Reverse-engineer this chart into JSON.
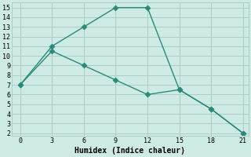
{
  "line1_x": [
    0,
    3,
    6,
    9,
    12,
    15,
    18,
    21
  ],
  "line1_y": [
    7,
    11,
    13,
    15,
    15,
    6.5,
    4.5,
    2
  ],
  "line2_x": [
    0,
    3,
    6,
    9,
    12,
    15,
    18,
    21
  ],
  "line2_y": [
    7,
    10.5,
    9,
    7.5,
    6,
    6.5,
    4.5,
    2
  ],
  "line_color": "#2a8a78",
  "bg_color": "#ceeae4",
  "grid_color": "#aacfc8",
  "xlabel": "Humidex (Indice chaleur)",
  "ymin": 2,
  "ymax": 15,
  "xmin": 0,
  "xmax": 21,
  "yticks": [
    2,
    3,
    4,
    5,
    6,
    7,
    8,
    9,
    10,
    11,
    12,
    13,
    14,
    15
  ],
  "xticks": [
    0,
    3,
    6,
    9,
    12,
    15,
    18,
    21
  ],
  "markersize": 3.5,
  "linewidth": 1.0,
  "xlabel_fontsize": 7,
  "tick_fontsize": 6
}
